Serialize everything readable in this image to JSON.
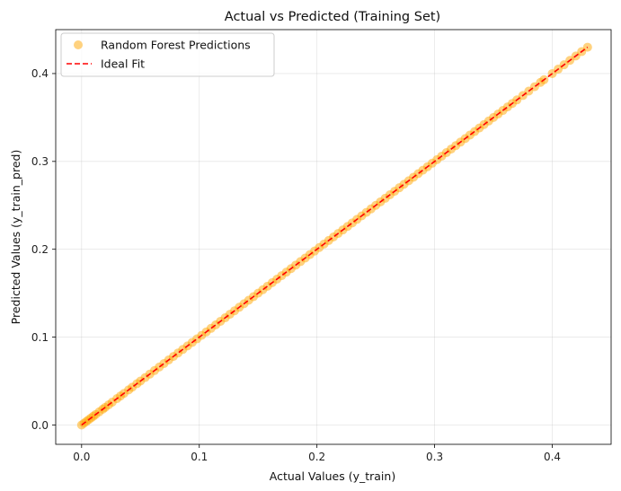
{
  "chart_data": {
    "type": "scatter",
    "title": "Actual vs Predicted (Training Set)",
    "xlabel": "Actual Values (y_train)",
    "ylabel": "Predicted Values (y_train_pred)",
    "xlim": [
      -0.022,
      0.45
    ],
    "ylim": [
      -0.022,
      0.45
    ],
    "xticks": [
      0.0,
      0.1,
      0.2,
      0.3,
      0.4
    ],
    "yticks": [
      0.0,
      0.1,
      0.2,
      0.3,
      0.4
    ],
    "xtick_labels": [
      "0.0",
      "0.1",
      "0.2",
      "0.3",
      "0.4"
    ],
    "ytick_labels": [
      "0.0",
      "0.1",
      "0.2",
      "0.3",
      "0.4"
    ],
    "grid": true,
    "legend_position": "top-left",
    "legend": [
      "Random Forest Predictions",
      "Ideal Fit"
    ],
    "series": [
      {
        "name": "Random Forest Predictions",
        "kind": "scatter",
        "color": "#ffa500",
        "points": [
          [
            0.0,
            0.0
          ],
          [
            0.002,
            0.002
          ],
          [
            0.004,
            0.004
          ],
          [
            0.006,
            0.006
          ],
          [
            0.008,
            0.008
          ],
          [
            0.01,
            0.01
          ],
          [
            0.012,
            0.012
          ],
          [
            0.015,
            0.015
          ],
          [
            0.018,
            0.018
          ],
          [
            0.02,
            0.02
          ],
          [
            0.023,
            0.023
          ],
          [
            0.026,
            0.026
          ],
          [
            0.03,
            0.03
          ],
          [
            0.033,
            0.033
          ],
          [
            0.036,
            0.036
          ],
          [
            0.04,
            0.04
          ],
          [
            0.043,
            0.043
          ],
          [
            0.047,
            0.047
          ],
          [
            0.05,
            0.05
          ],
          [
            0.054,
            0.054
          ],
          [
            0.058,
            0.058
          ],
          [
            0.062,
            0.062
          ],
          [
            0.066,
            0.066
          ],
          [
            0.07,
            0.07
          ],
          [
            0.074,
            0.074
          ],
          [
            0.078,
            0.078
          ],
          [
            0.082,
            0.082
          ],
          [
            0.086,
            0.086
          ],
          [
            0.09,
            0.09
          ],
          [
            0.094,
            0.094
          ],
          [
            0.098,
            0.098
          ],
          [
            0.102,
            0.102
          ],
          [
            0.106,
            0.106
          ],
          [
            0.11,
            0.11
          ],
          [
            0.114,
            0.114
          ],
          [
            0.118,
            0.118
          ],
          [
            0.122,
            0.122
          ],
          [
            0.126,
            0.126
          ],
          [
            0.13,
            0.13
          ],
          [
            0.134,
            0.134
          ],
          [
            0.138,
            0.138
          ],
          [
            0.142,
            0.142
          ],
          [
            0.146,
            0.146
          ],
          [
            0.15,
            0.15
          ],
          [
            0.154,
            0.154
          ],
          [
            0.158,
            0.158
          ],
          [
            0.162,
            0.162
          ],
          [
            0.166,
            0.166
          ],
          [
            0.17,
            0.17
          ],
          [
            0.174,
            0.174
          ],
          [
            0.178,
            0.178
          ],
          [
            0.182,
            0.182
          ],
          [
            0.186,
            0.186
          ],
          [
            0.19,
            0.19
          ],
          [
            0.194,
            0.194
          ],
          [
            0.198,
            0.198
          ],
          [
            0.202,
            0.202
          ],
          [
            0.206,
            0.206
          ],
          [
            0.21,
            0.21
          ],
          [
            0.214,
            0.214
          ],
          [
            0.218,
            0.218
          ],
          [
            0.222,
            0.222
          ],
          [
            0.226,
            0.226
          ],
          [
            0.23,
            0.23
          ],
          [
            0.234,
            0.234
          ],
          [
            0.238,
            0.238
          ],
          [
            0.242,
            0.242
          ],
          [
            0.246,
            0.246
          ],
          [
            0.25,
            0.25
          ],
          [
            0.254,
            0.254
          ],
          [
            0.258,
            0.258
          ],
          [
            0.262,
            0.262
          ],
          [
            0.266,
            0.266
          ],
          [
            0.27,
            0.27
          ],
          [
            0.274,
            0.274
          ],
          [
            0.278,
            0.278
          ],
          [
            0.282,
            0.282
          ],
          [
            0.286,
            0.286
          ],
          [
            0.29,
            0.29
          ],
          [
            0.294,
            0.294
          ],
          [
            0.298,
            0.298
          ],
          [
            0.302,
            0.302
          ],
          [
            0.306,
            0.306
          ],
          [
            0.31,
            0.31
          ],
          [
            0.314,
            0.314
          ],
          [
            0.318,
            0.318
          ],
          [
            0.322,
            0.322
          ],
          [
            0.326,
            0.326
          ],
          [
            0.33,
            0.33
          ],
          [
            0.334,
            0.334
          ],
          [
            0.338,
            0.338
          ],
          [
            0.342,
            0.342
          ],
          [
            0.346,
            0.346
          ],
          [
            0.35,
            0.35
          ],
          [
            0.354,
            0.354
          ],
          [
            0.358,
            0.358
          ],
          [
            0.362,
            0.362
          ],
          [
            0.366,
            0.366
          ],
          [
            0.37,
            0.37
          ],
          [
            0.375,
            0.375
          ],
          [
            0.38,
            0.38
          ],
          [
            0.385,
            0.385
          ],
          [
            0.39,
            0.39
          ],
          [
            0.393,
            0.393
          ],
          [
            0.4,
            0.4
          ],
          [
            0.405,
            0.405
          ],
          [
            0.41,
            0.41
          ],
          [
            0.415,
            0.415
          ],
          [
            0.42,
            0.42
          ],
          [
            0.425,
            0.425
          ],
          [
            0.43,
            0.43
          ]
        ]
      },
      {
        "name": "Ideal Fit",
        "kind": "line",
        "style": "dashed",
        "color": "#ff0000",
        "points": [
          [
            0.0,
            0.0
          ],
          [
            0.43,
            0.43
          ]
        ]
      }
    ]
  }
}
